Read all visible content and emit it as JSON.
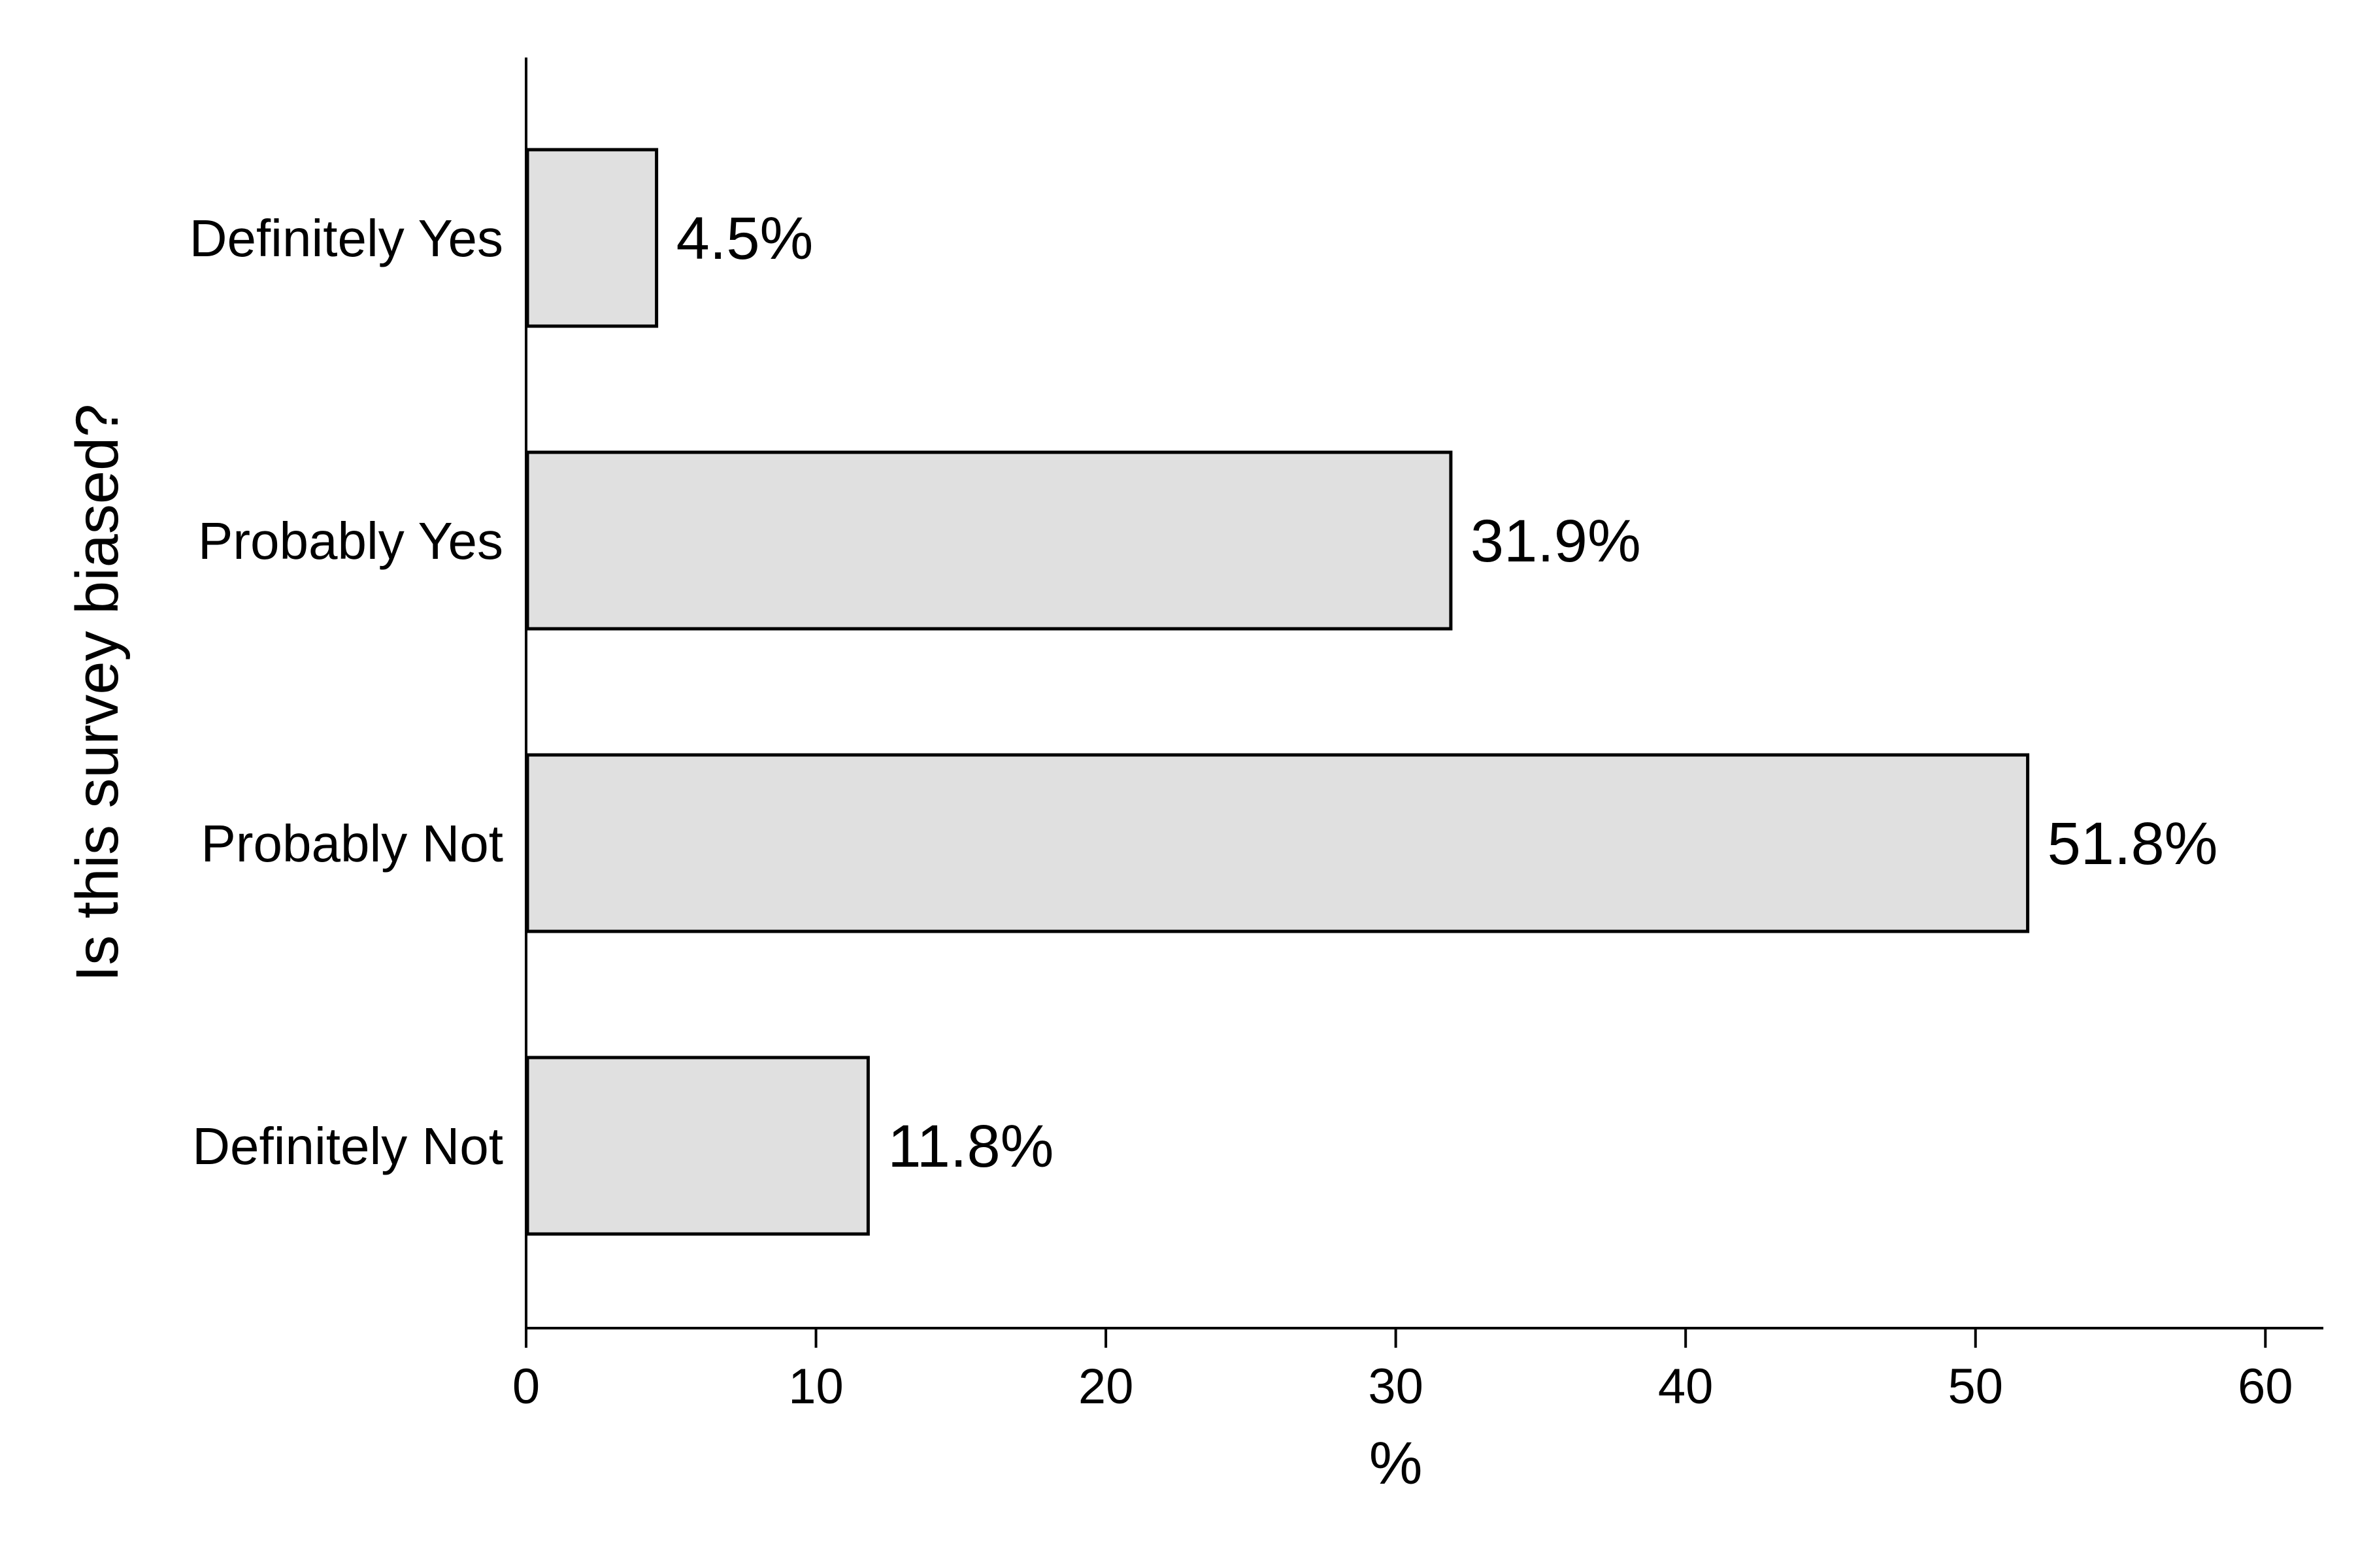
{
  "chart_data": {
    "type": "bar",
    "orientation": "horizontal",
    "categories": [
      "Definitely Yes",
      "Probably Yes",
      "Probably Not",
      "Definitely Not"
    ],
    "values": [
      4.5,
      31.9,
      51.8,
      11.8
    ],
    "data_labels": [
      "4.5%",
      "31.9%",
      "51.8%",
      "11.8%"
    ],
    "xlabel": "%",
    "ylabel": "Is this survey biased?",
    "xlim": [
      0,
      62
    ],
    "xticks": [
      0,
      10,
      20,
      30,
      40,
      50,
      60
    ],
    "xtick_labels": [
      "0",
      "10",
      "20",
      "30",
      "40",
      "50",
      "60"
    ],
    "grid": false,
    "colors": {
      "bar_fill": "#e0e0e0",
      "bar_stroke": "#000000",
      "axis": "#000000"
    }
  }
}
